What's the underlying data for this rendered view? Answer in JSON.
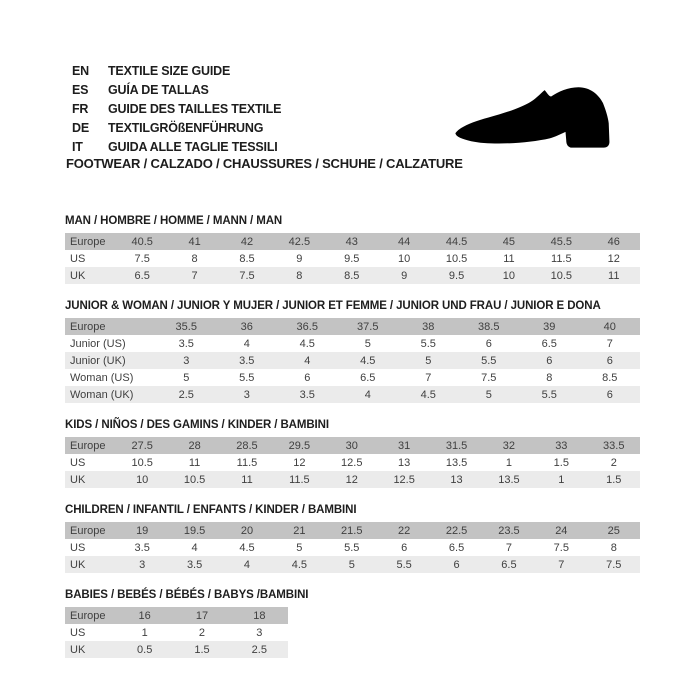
{
  "header": {
    "languages": [
      {
        "code": "EN",
        "text": "TEXTILE SIZE GUIDE"
      },
      {
        "code": "ES",
        "text": "GUÍA DE TALLAS"
      },
      {
        "code": "FR",
        "text": "GUIDE DES TAILLES TEXTILE"
      },
      {
        "code": "DE",
        "text": "TEXTILGRÖßENFÜHRUNG"
      },
      {
        "code": "IT",
        "text": "GUIDA ALLE TAGLIE TESSILI"
      }
    ],
    "category_line": "FOOTWEAR / CALZADO / CHAUSSURES / SCHUHE / CALZATURE"
  },
  "icons": {
    "shoe": "dress-shoe-silhouette"
  },
  "colors": {
    "background": "#ffffff",
    "text": "#1d1d1d",
    "table_text": "#404040",
    "table_header_row_bg": "#c3c3c3",
    "table_alt_row_bg": "#ebebeb",
    "shoe": "#000000"
  },
  "tables": [
    {
      "title": "MAN / HOMBRE / HOMME / MANN / MAN",
      "rows": [
        {
          "label": "Europe",
          "values": [
            "40.5",
            "41",
            "42",
            "42.5",
            "43",
            "44",
            "44.5",
            "45",
            "45.5",
            "46"
          ]
        },
        {
          "label": "US",
          "values": [
            "7.5",
            "8",
            "8.5",
            "9",
            "9.5",
            "10",
            "10.5",
            "11",
            "11.5",
            "12"
          ]
        },
        {
          "label": "UK",
          "values": [
            "6.5",
            "7",
            "7.5",
            "8",
            "8.5",
            "9",
            "9.5",
            "10",
            "10.5",
            "11"
          ]
        }
      ]
    },
    {
      "title": "JUNIOR & WOMAN / JUNIOR Y MUJER / JUNIOR ET FEMME / JUNIOR UND FRAU / JUNIOR E DONA",
      "rows": [
        {
          "label": "Europe",
          "values": [
            "35.5",
            "36",
            "36.5",
            "37.5",
            "38",
            "38.5",
            "39",
            "40"
          ]
        },
        {
          "label": "Junior (US)",
          "values": [
            "3.5",
            "4",
            "4.5",
            "5",
            "5.5",
            "6",
            "6.5",
            "7"
          ]
        },
        {
          "label": "Junior (UK)",
          "values": [
            "3",
            "3.5",
            "4",
            "4.5",
            "5",
            "5.5",
            "6",
            "6"
          ]
        },
        {
          "label": "Woman (US)",
          "values": [
            "5",
            "5.5",
            "6",
            "6.5",
            "7",
            "7.5",
            "8",
            "8.5"
          ]
        },
        {
          "label": "Woman (UK)",
          "values": [
            "2.5",
            "3",
            "3.5",
            "4",
            "4.5",
            "5",
            "5.5",
            "6"
          ]
        }
      ]
    },
    {
      "title": "KIDS / NIÑOS / DES GAMINS / KINDER / BAMBINI",
      "rows": [
        {
          "label": "Europe",
          "values": [
            "27.5",
            "28",
            "28.5",
            "29.5",
            "30",
            "31",
            "31.5",
            "32",
            "33",
            "33.5"
          ]
        },
        {
          "label": "US",
          "values": [
            "10.5",
            "11",
            "11.5",
            "12",
            "12.5",
            "13",
            "13.5",
            "1",
            "1.5",
            "2"
          ]
        },
        {
          "label": "UK",
          "values": [
            "10",
            "10.5",
            "11",
            "11.5",
            "12",
            "12.5",
            "13",
            "13.5",
            "1",
            "1.5"
          ]
        }
      ]
    },
    {
      "title": "CHILDREN / INFANTIL / ENFANTS / KINDER / BAMBINI",
      "rows": [
        {
          "label": "Europe",
          "values": [
            "19",
            "19.5",
            "20",
            "21",
            "21.5",
            "22",
            "22.5",
            "23.5",
            "24",
            "25"
          ]
        },
        {
          "label": "US",
          "values": [
            "3.5",
            "4",
            "4.5",
            "5",
            "5.5",
            "6",
            "6.5",
            "7",
            "7.5",
            "8"
          ]
        },
        {
          "label": "UK",
          "values": [
            "3",
            "3.5",
            "4",
            "4.5",
            "5",
            "5.5",
            "6",
            "6.5",
            "7",
            "7.5"
          ]
        }
      ]
    },
    {
      "title": "BABIES / BEBÉS / BÉBÉS / BABYS /BAMBINI",
      "rows": [
        {
          "label": "Europe",
          "values": [
            "16",
            "17",
            "18"
          ]
        },
        {
          "label": "US",
          "values": [
            "1",
            "2",
            "3"
          ]
        },
        {
          "label": "UK",
          "values": [
            "0.5",
            "1.5",
            "2.5"
          ]
        }
      ]
    }
  ]
}
